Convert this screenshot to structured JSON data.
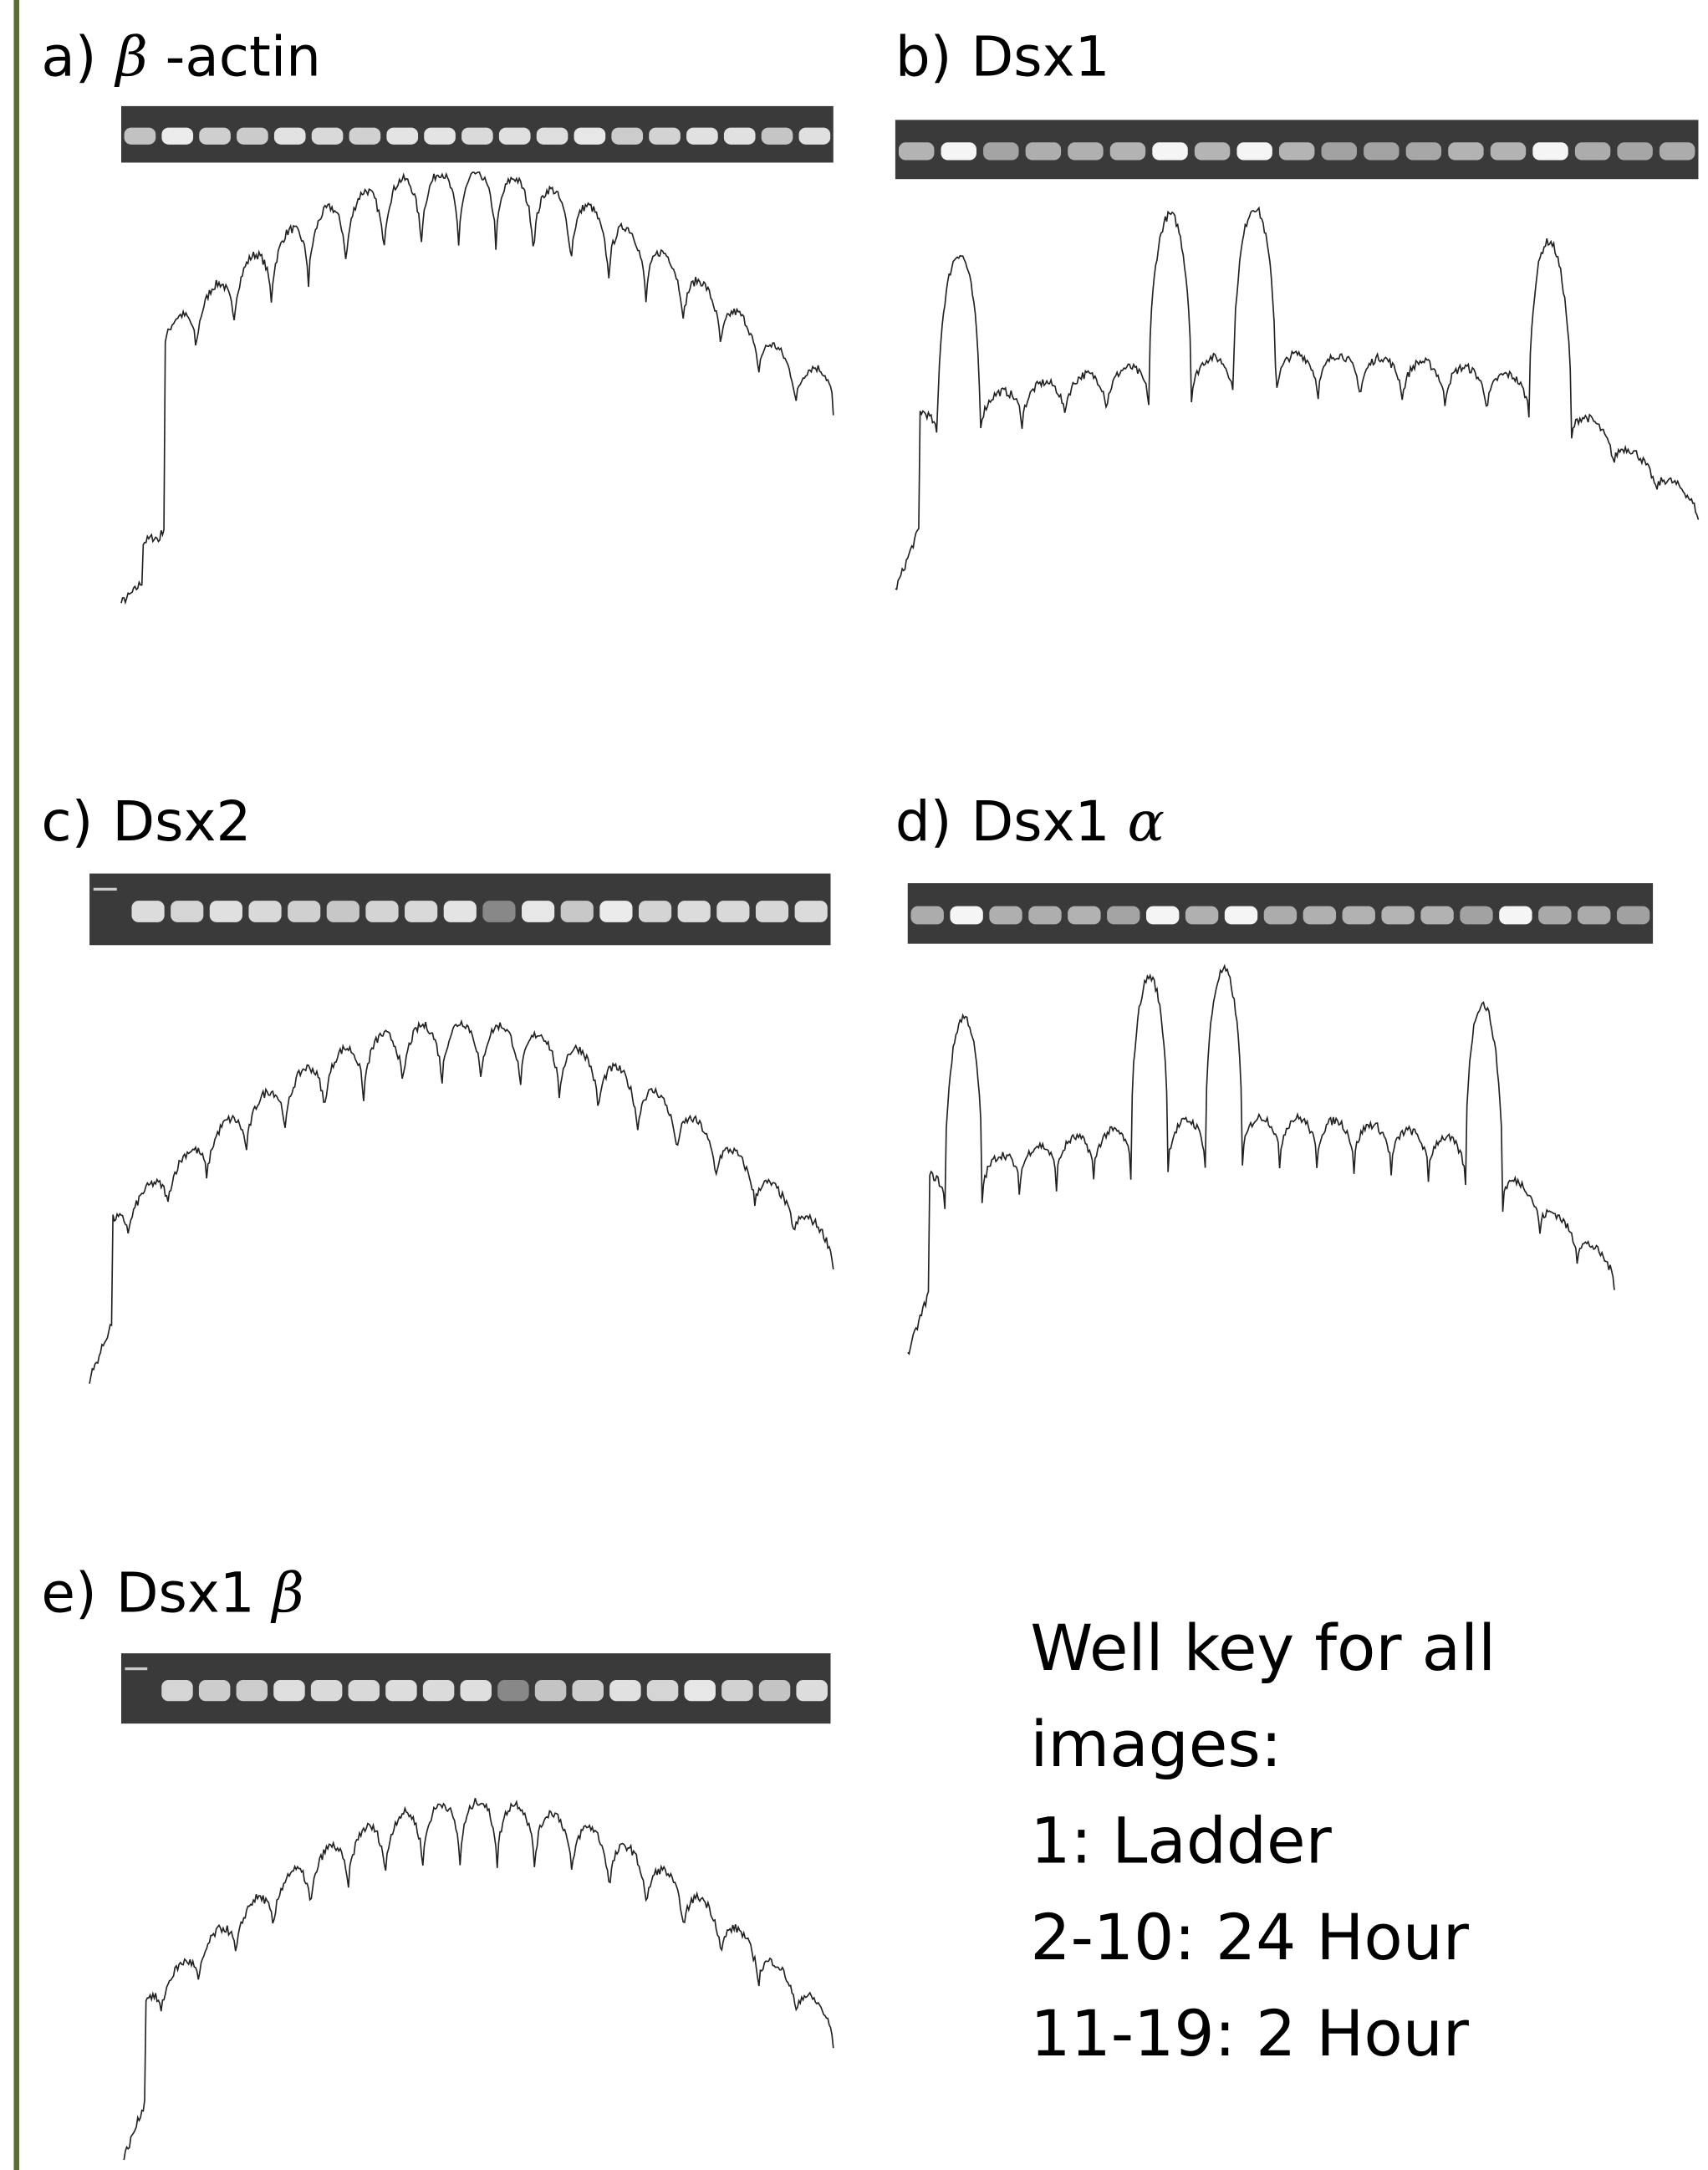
{
  "panels": [
    {
      "letter": "a)",
      "parts": [
        {
          "text": "β",
          "italic": true
        },
        {
          "text": " -actin",
          "italic": false
        }
      ]
    },
    {
      "letter": "b)",
      "parts": [
        {
          "text": "Dsx1",
          "italic": false
        }
      ]
    },
    {
      "letter": "c)",
      "parts": [
        {
          "text": "Dsx2",
          "italic": false
        }
      ]
    },
    {
      "letter": "d)",
      "parts": [
        {
          "text": "Dsx1 ",
          "italic": false
        },
        {
          "text": "α",
          "italic": true
        }
      ]
    },
    {
      "letter": "e)",
      "parts": [
        {
          "text": "Dsx1 ",
          "italic": false
        },
        {
          "text": "β",
          "italic": true
        }
      ]
    }
  ],
  "well_key": {
    "lines": [
      "Well key for all",
      "images:",
      "1: Ladder",
      "2-10: 24 Hour",
      "11-19: 2 Hour"
    ]
  }
}
